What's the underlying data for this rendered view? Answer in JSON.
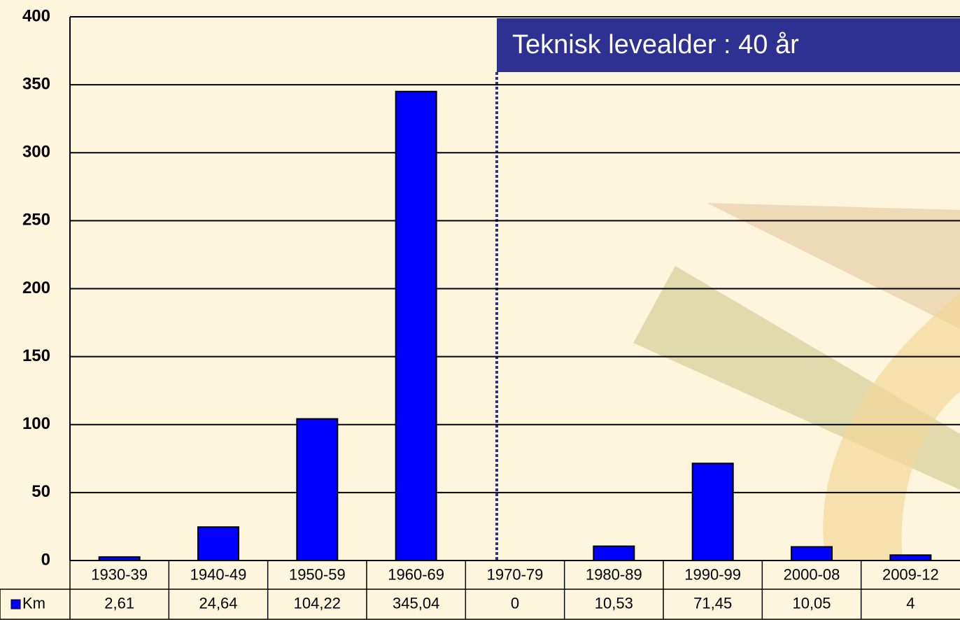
{
  "chart_data": {
    "type": "bar",
    "annotation": "Teknisk levealder : 40 år",
    "categories": [
      "1930-39",
      "1940-49",
      "1950-59",
      "1960-69",
      "1970-79",
      "1980-89",
      "1990-99",
      "2000-08",
      "2009-12"
    ],
    "series": [
      {
        "name": "Km",
        "color": "#0000ff",
        "values": [
          2.61,
          24.64,
          104.22,
          345.04,
          0,
          10.53,
          71.45,
          10.05,
          4
        ],
        "value_labels": [
          "2,61",
          "24,64",
          "104,22",
          "345,04",
          "0",
          "10,53",
          "71,45",
          "10,05",
          "4"
        ]
      }
    ],
    "ylim": [
      0,
      400
    ],
    "yticks": [
      0,
      50,
      100,
      150,
      200,
      250,
      300,
      350,
      400
    ],
    "grid": true
  }
}
